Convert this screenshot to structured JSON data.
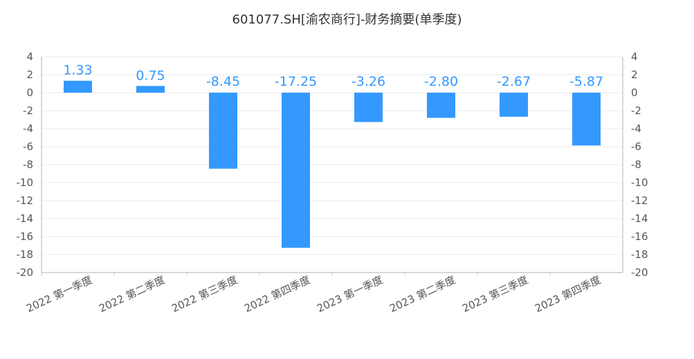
{
  "chart_data": {
    "type": "bar",
    "title": "601077.SH[渝农商行]-财务摘要(单季度)",
    "categories": [
      "2022 第一季度",
      "2022 第二季度",
      "2022 第三季度",
      "2022 第四季度",
      "2023 第一季度",
      "2023 第二季度",
      "2023 第三季度",
      "2023 第四季度"
    ],
    "values": [
      1.33,
      0.75,
      -8.45,
      -17.25,
      -3.26,
      -2.8,
      -2.67,
      -5.87
    ],
    "value_labels": [
      "1.33",
      "0.75",
      "-8.45",
      "-17.25",
      "-3.26",
      "-2.80",
      "-2.67",
      "-5.87"
    ],
    "ylim": [
      -20,
      4
    ],
    "yticks": [
      4,
      2,
      0,
      -2,
      -4,
      -6,
      -8,
      -10,
      -12,
      -14,
      -16,
      -18,
      -20
    ],
    "y_axes": [
      "left",
      "right"
    ],
    "grid": true,
    "colors": {
      "bar": "#3399FF",
      "label": "#3399FF",
      "grid": "#E8E8E8",
      "axis": "#CCCCCC"
    }
  }
}
